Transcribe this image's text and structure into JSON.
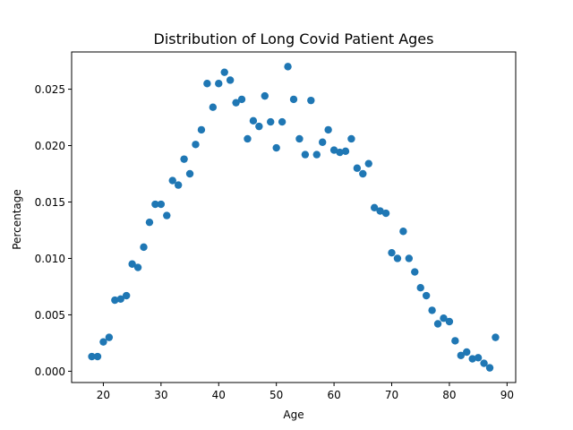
{
  "chart_data": {
    "type": "scatter",
    "title": "Distribution of Long Covid Patient Ages",
    "xlabel": "Age",
    "ylabel": "Percentage",
    "xlim": [
      14.5,
      91.5
    ],
    "ylim": [
      -0.001,
      0.0283
    ],
    "xticks": [
      20,
      30,
      40,
      50,
      60,
      70,
      80,
      90
    ],
    "xtick_labels": [
      "20",
      "30",
      "40",
      "50",
      "60",
      "70",
      "80",
      "90"
    ],
    "yticks": [
      0.0,
      0.005,
      0.01,
      0.015,
      0.02,
      0.025
    ],
    "ytick_labels": [
      "0.000",
      "0.005",
      "0.010",
      "0.015",
      "0.020",
      "0.025"
    ],
    "grid": false,
    "marker_color": "#1f77b4",
    "points": [
      [
        18,
        0.0013
      ],
      [
        19,
        0.0013
      ],
      [
        20,
        0.0026
      ],
      [
        21,
        0.003
      ],
      [
        22,
        0.0063
      ],
      [
        23,
        0.0064
      ],
      [
        24,
        0.0067
      ],
      [
        25,
        0.0095
      ],
      [
        26,
        0.0092
      ],
      [
        27,
        0.011
      ],
      [
        28,
        0.0132
      ],
      [
        29,
        0.0148
      ],
      [
        30,
        0.0148
      ],
      [
        31,
        0.0138
      ],
      [
        32,
        0.0169
      ],
      [
        33,
        0.0165
      ],
      [
        34,
        0.0188
      ],
      [
        35,
        0.0175
      ],
      [
        36,
        0.0201
      ],
      [
        37,
        0.0214
      ],
      [
        38,
        0.0255
      ],
      [
        39,
        0.0234
      ],
      [
        40,
        0.0255
      ],
      [
        41,
        0.0265
      ],
      [
        42,
        0.0258
      ],
      [
        43,
        0.0238
      ],
      [
        44,
        0.0241
      ],
      [
        45,
        0.0206
      ],
      [
        46,
        0.0222
      ],
      [
        47,
        0.0217
      ],
      [
        48,
        0.0244
      ],
      [
        49,
        0.0221
      ],
      [
        50,
        0.0198
      ],
      [
        51,
        0.0221
      ],
      [
        52,
        0.027
      ],
      [
        53,
        0.0241
      ],
      [
        54,
        0.0206
      ],
      [
        55,
        0.0192
      ],
      [
        56,
        0.024
      ],
      [
        57,
        0.0192
      ],
      [
        58,
        0.0203
      ],
      [
        59,
        0.0214
      ],
      [
        60,
        0.0196
      ],
      [
        61,
        0.0194
      ],
      [
        62,
        0.0195
      ],
      [
        63,
        0.0206
      ],
      [
        64,
        0.018
      ],
      [
        65,
        0.0175
      ],
      [
        66,
        0.0184
      ],
      [
        67,
        0.0145
      ],
      [
        68,
        0.0142
      ],
      [
        69,
        0.014
      ],
      [
        70,
        0.0105
      ],
      [
        71,
        0.01
      ],
      [
        72,
        0.0124
      ],
      [
        73,
        0.01
      ],
      [
        74,
        0.0088
      ],
      [
        75,
        0.0074
      ],
      [
        76,
        0.0067
      ],
      [
        77,
        0.0054
      ],
      [
        78,
        0.0042
      ],
      [
        79,
        0.0047
      ],
      [
        80,
        0.0044
      ],
      [
        81,
        0.0027
      ],
      [
        82,
        0.0014
      ],
      [
        83,
        0.0017
      ],
      [
        84,
        0.0011
      ],
      [
        85,
        0.0012
      ],
      [
        86,
        0.0007
      ],
      [
        87,
        0.0003
      ],
      [
        88,
        0.003
      ]
    ]
  }
}
